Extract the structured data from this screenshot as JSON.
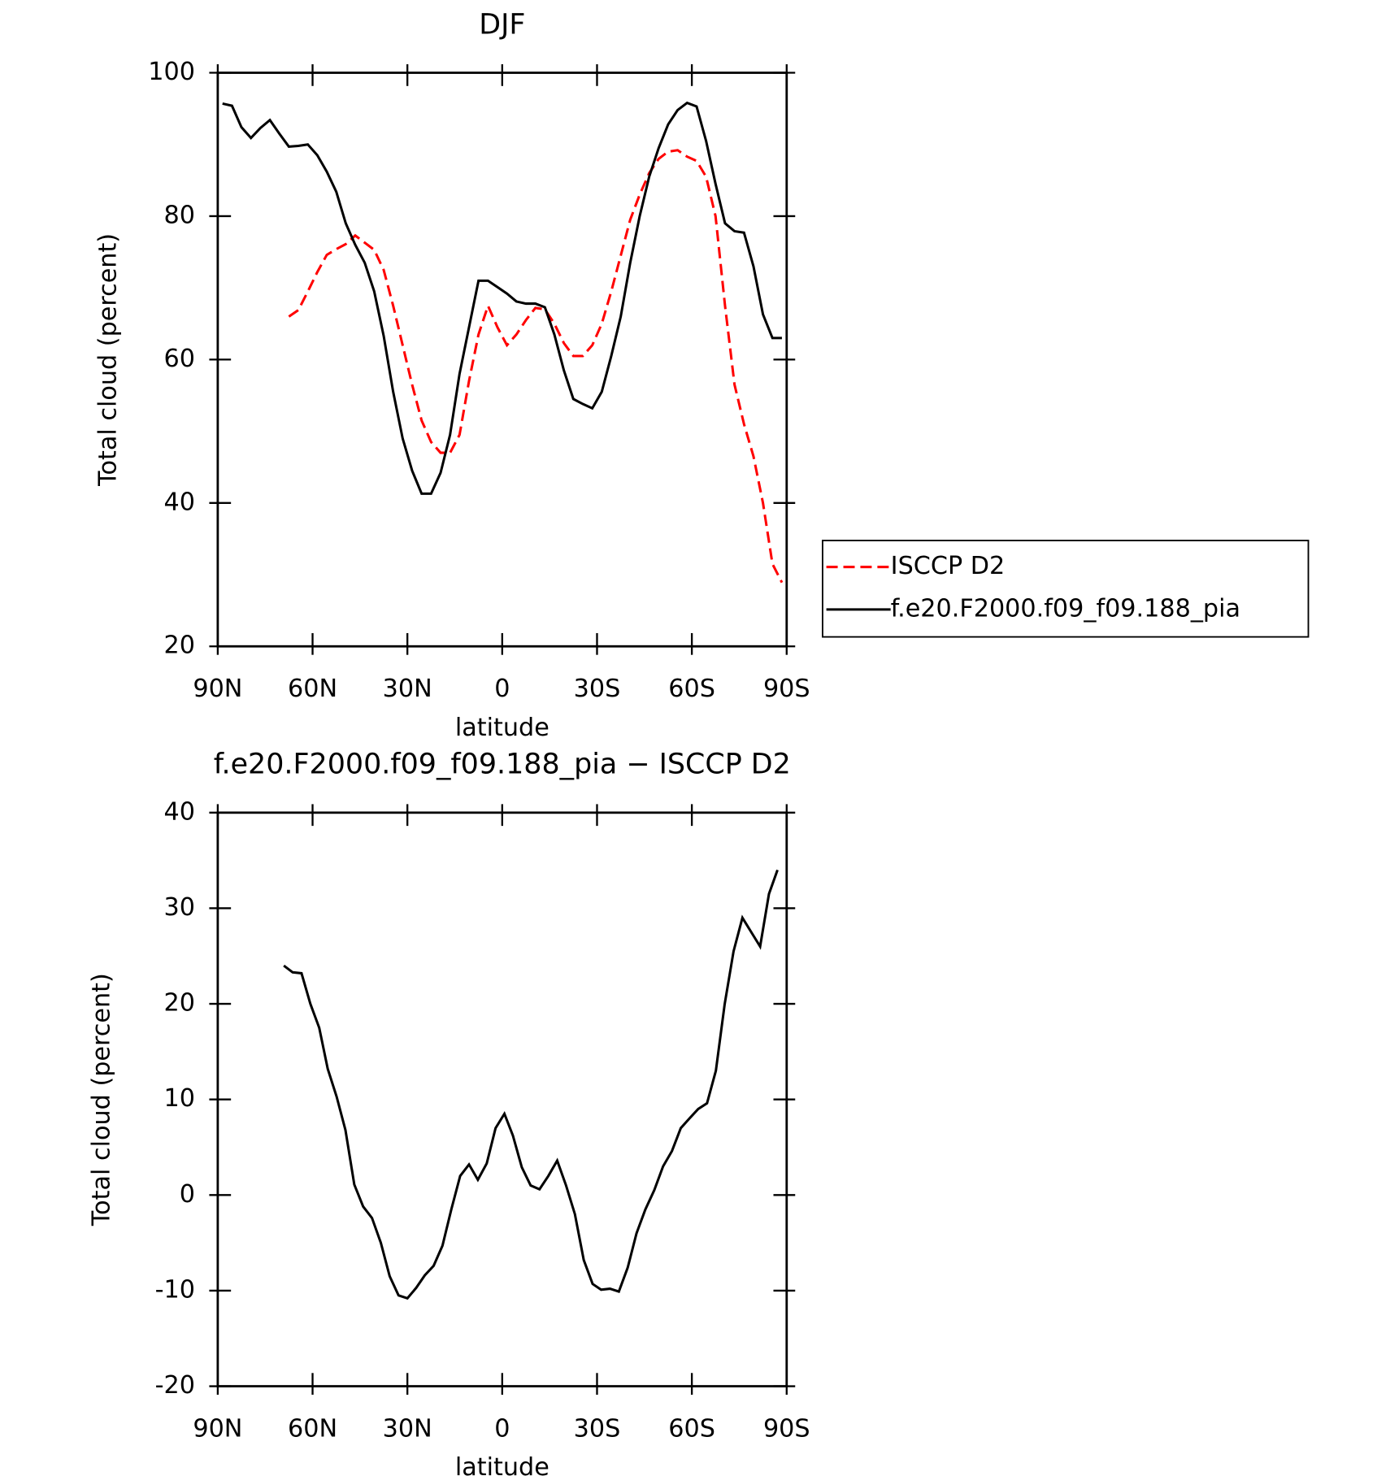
{
  "chart_data": [
    {
      "type": "line",
      "title": "DJF",
      "xlabel": "latitude",
      "ylabel": "Total cloud (percent)",
      "x": [
        88.5,
        85.5,
        82.5,
        79.5,
        76.5,
        73.5,
        70.5,
        67.5,
        64.5,
        61.5,
        58.5,
        55.5,
        52.5,
        49.5,
        46.5,
        43.5,
        40.5,
        37.5,
        34.5,
        31.5,
        28.5,
        25.5,
        22.5,
        19.5,
        16.5,
        13.5,
        10.5,
        7.5,
        4.5,
        1.5,
        -1.5,
        -4.5,
        -7.5,
        -10.5,
        -13.5,
        -16.5,
        -19.5,
        -22.5,
        -25.5,
        -28.5,
        -31.5,
        -34.5,
        -37.5,
        -40.5,
        -43.5,
        -46.5,
        -49.5,
        -52.5,
        -55.5,
        -58.5,
        -61.5,
        -64.5,
        -67.5,
        -70.5,
        -73.5,
        -76.5,
        -79.5,
        -82.5,
        -85.5,
        -88.5
      ],
      "series": [
        {
          "name": "ISCCP D2",
          "color": "#ff0000",
          "dashed": true,
          "values": [
            null,
            null,
            null,
            null,
            null,
            null,
            null,
            66,
            66.9,
            69.5,
            72.2,
            74.6,
            75.4,
            76.1,
            77.3,
            76.3,
            75.3,
            72.5,
            67.5,
            62,
            56.5,
            51.5,
            48.5,
            47,
            47,
            49.5,
            57,
            63.5,
            67.5,
            64.5,
            62,
            63.5,
            65.5,
            67.2,
            67,
            65,
            62.3,
            60.5,
            60.5,
            62,
            65,
            69.5,
            74.5,
            79.5,
            83,
            86,
            88,
            89,
            89.2,
            88.3,
            87.7,
            85.5,
            80,
            67.5,
            56.5,
            51,
            46.5,
            40,
            31.5,
            28.9
          ]
        },
        {
          "name": "f.e20.F2000.f09_f09.188_pia",
          "color": "#000000",
          "dashed": false,
          "values": [
            95.7,
            95.4,
            92.4,
            90.9,
            92.3,
            93.4,
            91.5,
            89.7,
            89.8,
            90,
            88.5,
            86.2,
            83.4,
            79,
            76,
            73.5,
            69.5,
            63.3,
            55.5,
            49,
            44.5,
            41.3,
            41.3,
            44.2,
            49.5,
            58,
            64.5,
            71,
            71,
            70.1,
            69.2,
            68.1,
            67.8,
            67.8,
            67.3,
            63.5,
            58.5,
            54.5,
            53.8,
            53.2,
            55.5,
            60.5,
            66,
            73.5,
            80,
            85.5,
            89.5,
            92.8,
            94.8,
            95.8,
            95.3,
            90.5,
            84.5,
            79,
            77.9,
            77.7,
            73,
            66.3,
            63,
            63
          ]
        }
      ],
      "xlim": [
        90,
        -90
      ],
      "xticks": [
        {
          "value": 90,
          "label": "90N"
        },
        {
          "value": 60,
          "label": "60N"
        },
        {
          "value": 30,
          "label": "30N"
        },
        0,
        {
          "value": -30,
          "label": "30S"
        },
        {
          "value": -60,
          "label": "60S"
        },
        {
          "value": -90,
          "label": "90S"
        }
      ],
      "ylim": [
        20,
        100
      ],
      "yticks": [
        20,
        40,
        60,
        80,
        100
      ],
      "legend": "right"
    },
    {
      "type": "line",
      "title": "f.e20.F2000.f09_f09.188_pia − ISCCP D2",
      "xlabel": "latitude",
      "ylabel": "Total cloud (percent)",
      "x": [
        69.1,
        66.3,
        63.5,
        60.7,
        57.9,
        55.2,
        52.4,
        49.6,
        46.8,
        44.0,
        41.2,
        38.4,
        35.6,
        32.8,
        30.0,
        27.2,
        24.5,
        21.7,
        18.9,
        16.1,
        13.3,
        10.5,
        7.7,
        4.9,
        2.1,
        -0.7,
        -3.4,
        -6.2,
        -9.0,
        -11.8,
        -14.6,
        -17.4,
        -20.2,
        -23.0,
        -25.8,
        -28.6,
        -31.3,
        -34.1,
        -36.9,
        -39.7,
        -42.5,
        -45.3,
        -48.1,
        -50.9,
        -53.7,
        -56.5,
        -59.2,
        -62.0,
        -64.8,
        -67.6,
        -70.4,
        -73.2,
        -76.0,
        -78.8,
        -81.6,
        -84.4,
        -87.1
      ],
      "series": [
        {
          "color": "#000000",
          "dashed": false,
          "values": [
            24.0,
            23.3,
            23.2,
            20,
            17.5,
            13.2,
            10.3,
            6.8,
            1.1,
            -1.2,
            -2.4,
            -5,
            -8.5,
            -10.5,
            -10.8,
            -9.7,
            -8.4,
            -7.4,
            -5.3,
            -1.5,
            2,
            3.2,
            1.6,
            3.3,
            7,
            8.5,
            6.2,
            2.9,
            1,
            0.6,
            2,
            3.6,
            1,
            -2,
            -6.8,
            -9.3,
            -9.9,
            -9.8,
            -10.1,
            -7.6,
            -4,
            -1.5,
            0.5,
            3,
            4.6,
            7,
            8,
            9,
            9.6,
            13,
            20,
            25.5,
            29,
            27.5,
            26,
            31.5,
            34
          ]
        }
      ],
      "xlim": [
        90,
        -90
      ],
      "xticks": [
        {
          "value": 90,
          "label": "90N"
        },
        {
          "value": 60,
          "label": "60N"
        },
        {
          "value": 30,
          "label": "30N"
        },
        0,
        {
          "value": -30,
          "label": "30S"
        },
        {
          "value": -60,
          "label": "60S"
        },
        {
          "value": -90,
          "label": "90S"
        }
      ],
      "ylim": [
        -20,
        40
      ],
      "yticks": [
        -20,
        -10,
        0,
        10,
        20,
        30,
        40
      ]
    }
  ]
}
